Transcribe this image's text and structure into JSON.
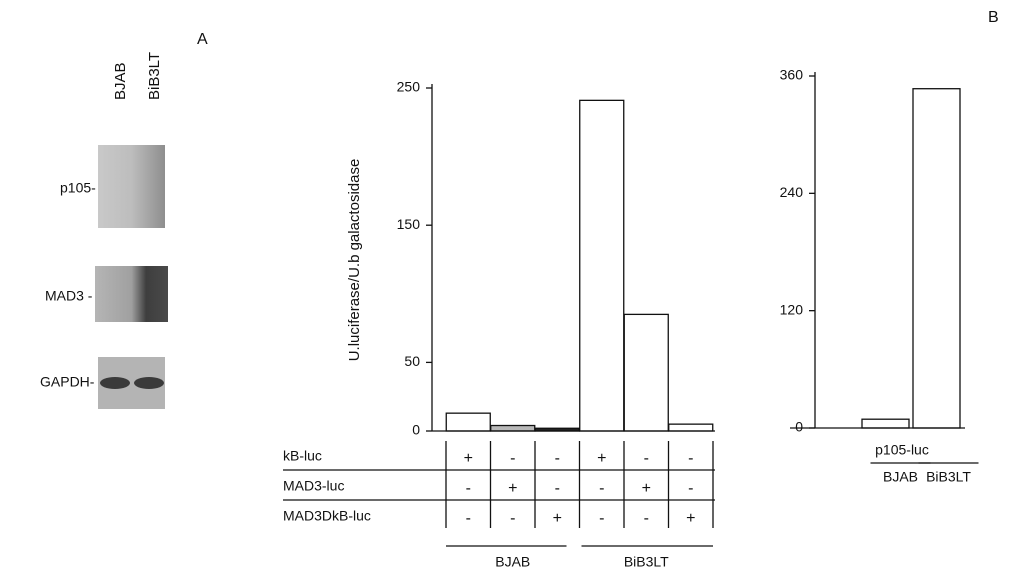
{
  "panels": {
    "a": "A",
    "b": "B"
  },
  "blot": {
    "columns": [
      "BJAB",
      "BiB3LT"
    ],
    "rows": [
      "p105-",
      "MAD3 -",
      "GAPDH-"
    ]
  },
  "chart_data": [
    {
      "type": "bar",
      "ylabel": "U.luciferase/U.b galactosidase",
      "values": [
        13,
        4,
        2,
        241,
        85,
        5
      ],
      "colors": [
        "#ffffff",
        "#b8b8b8",
        "#222222",
        "#ffffff",
        "#ffffff",
        "#ffffff"
      ],
      "ylim": [
        0,
        250
      ],
      "yticks": [
        0,
        50,
        150,
        250
      ],
      "conditions": [
        {
          "label": "kB-luc",
          "marks": [
            "+",
            "-",
            "-",
            "+",
            "-",
            "-"
          ]
        },
        {
          "label": "MAD3-luc",
          "marks": [
            "-",
            "+",
            "-",
            "-",
            "+",
            "-"
          ]
        },
        {
          "label": "MAD3DkB-luc",
          "marks": [
            "-",
            "-",
            "+",
            "-",
            "-",
            "+"
          ]
        }
      ],
      "groups": [
        "BJAB",
        "BiB3LT"
      ]
    },
    {
      "type": "bar",
      "xlabel": "p105-luc",
      "categories": [
        "BJAB",
        "BiB3LT"
      ],
      "values": [
        9,
        347
      ],
      "colors": [
        "#ffffff",
        "#ffffff"
      ],
      "ylim": [
        0,
        360
      ],
      "yticks": [
        0,
        120,
        240,
        360
      ]
    }
  ]
}
